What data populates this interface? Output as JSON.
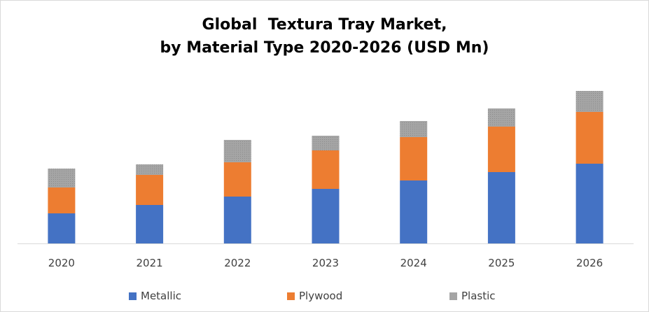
{
  "chart_data": {
    "type": "bar",
    "stacked": true,
    "title_lines": [
      "Global  Textura Tray Market,",
      "by Material Type 2020-2026 (USD Mn)"
    ],
    "categories": [
      "2020",
      "2021",
      "2022",
      "2023",
      "2024",
      "2025",
      "2026"
    ],
    "series": [
      {
        "name": "Metallic",
        "color": "#4472c4",
        "values": [
          43,
          55,
          67,
          78,
          90,
          102,
          114
        ]
      },
      {
        "name": "Plywood",
        "color": "#ed7d31",
        "values": [
          37,
          43,
          49,
          55,
          62,
          65,
          74
        ]
      },
      {
        "name": "Plastic",
        "color": "#a5a5a5",
        "values": [
          27,
          15,
          32,
          21,
          23,
          26,
          30
        ]
      }
    ],
    "ylim": [
      0,
      250
    ],
    "grid": false,
    "legend_position": "bottom"
  }
}
